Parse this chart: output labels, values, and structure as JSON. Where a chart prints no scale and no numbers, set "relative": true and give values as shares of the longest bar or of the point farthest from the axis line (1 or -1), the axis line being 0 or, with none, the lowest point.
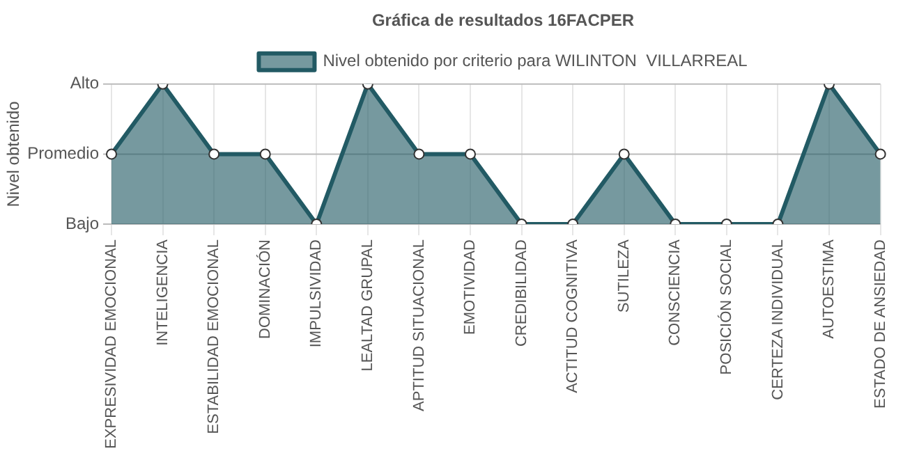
{
  "chart_data": {
    "type": "area",
    "title": "Gráfica de resultados 16FACPER",
    "ylabel": "Nivel obtenido",
    "relative": true,
    "categories": [
      "EXPRESIVIDAD EMOCIONAL",
      "INTELIGENCIA",
      "ESTABILIDAD EMOCIONAL",
      "DOMINACIÓN",
      "IMPULSIVIDAD",
      "LEALTAD GRUPAL",
      "APTITUD SITUACIONAL",
      "EMOTIVIDAD",
      "CREDIBILIDAD",
      "ACTITUD COGNITIVA",
      "SUTILEZA",
      "CONSCIENCIA",
      "POSICIÓN SOCIAL",
      "CERTEZA INDIVIDUAL",
      "AUTOESTIMA",
      "ESTADO DE ANSIEDAD"
    ],
    "series": [
      {
        "name": "Nivel obtenido por criterio para WILINTON  VILLARREAL",
        "color": "#225a64",
        "values": [
          0.5,
          1,
          0.5,
          0.5,
          0,
          1,
          0.5,
          0.5,
          0,
          0,
          0.5,
          0,
          0,
          0,
          1,
          0.5
        ]
      }
    ],
    "ref_lines": [
      {
        "axis": "y",
        "value": 1,
        "label": "Alto",
        "color": "#bbbbbb"
      },
      {
        "axis": "y",
        "value": 0.5,
        "label": "Promedio",
        "color": "#bbbbbb"
      },
      {
        "axis": "y",
        "value": 0,
        "label": "Bajo",
        "color": "#bbbbbb"
      }
    ],
    "grid": "x",
    "legend": "top",
    "marker": "circle",
    "line_style": "solid"
  }
}
